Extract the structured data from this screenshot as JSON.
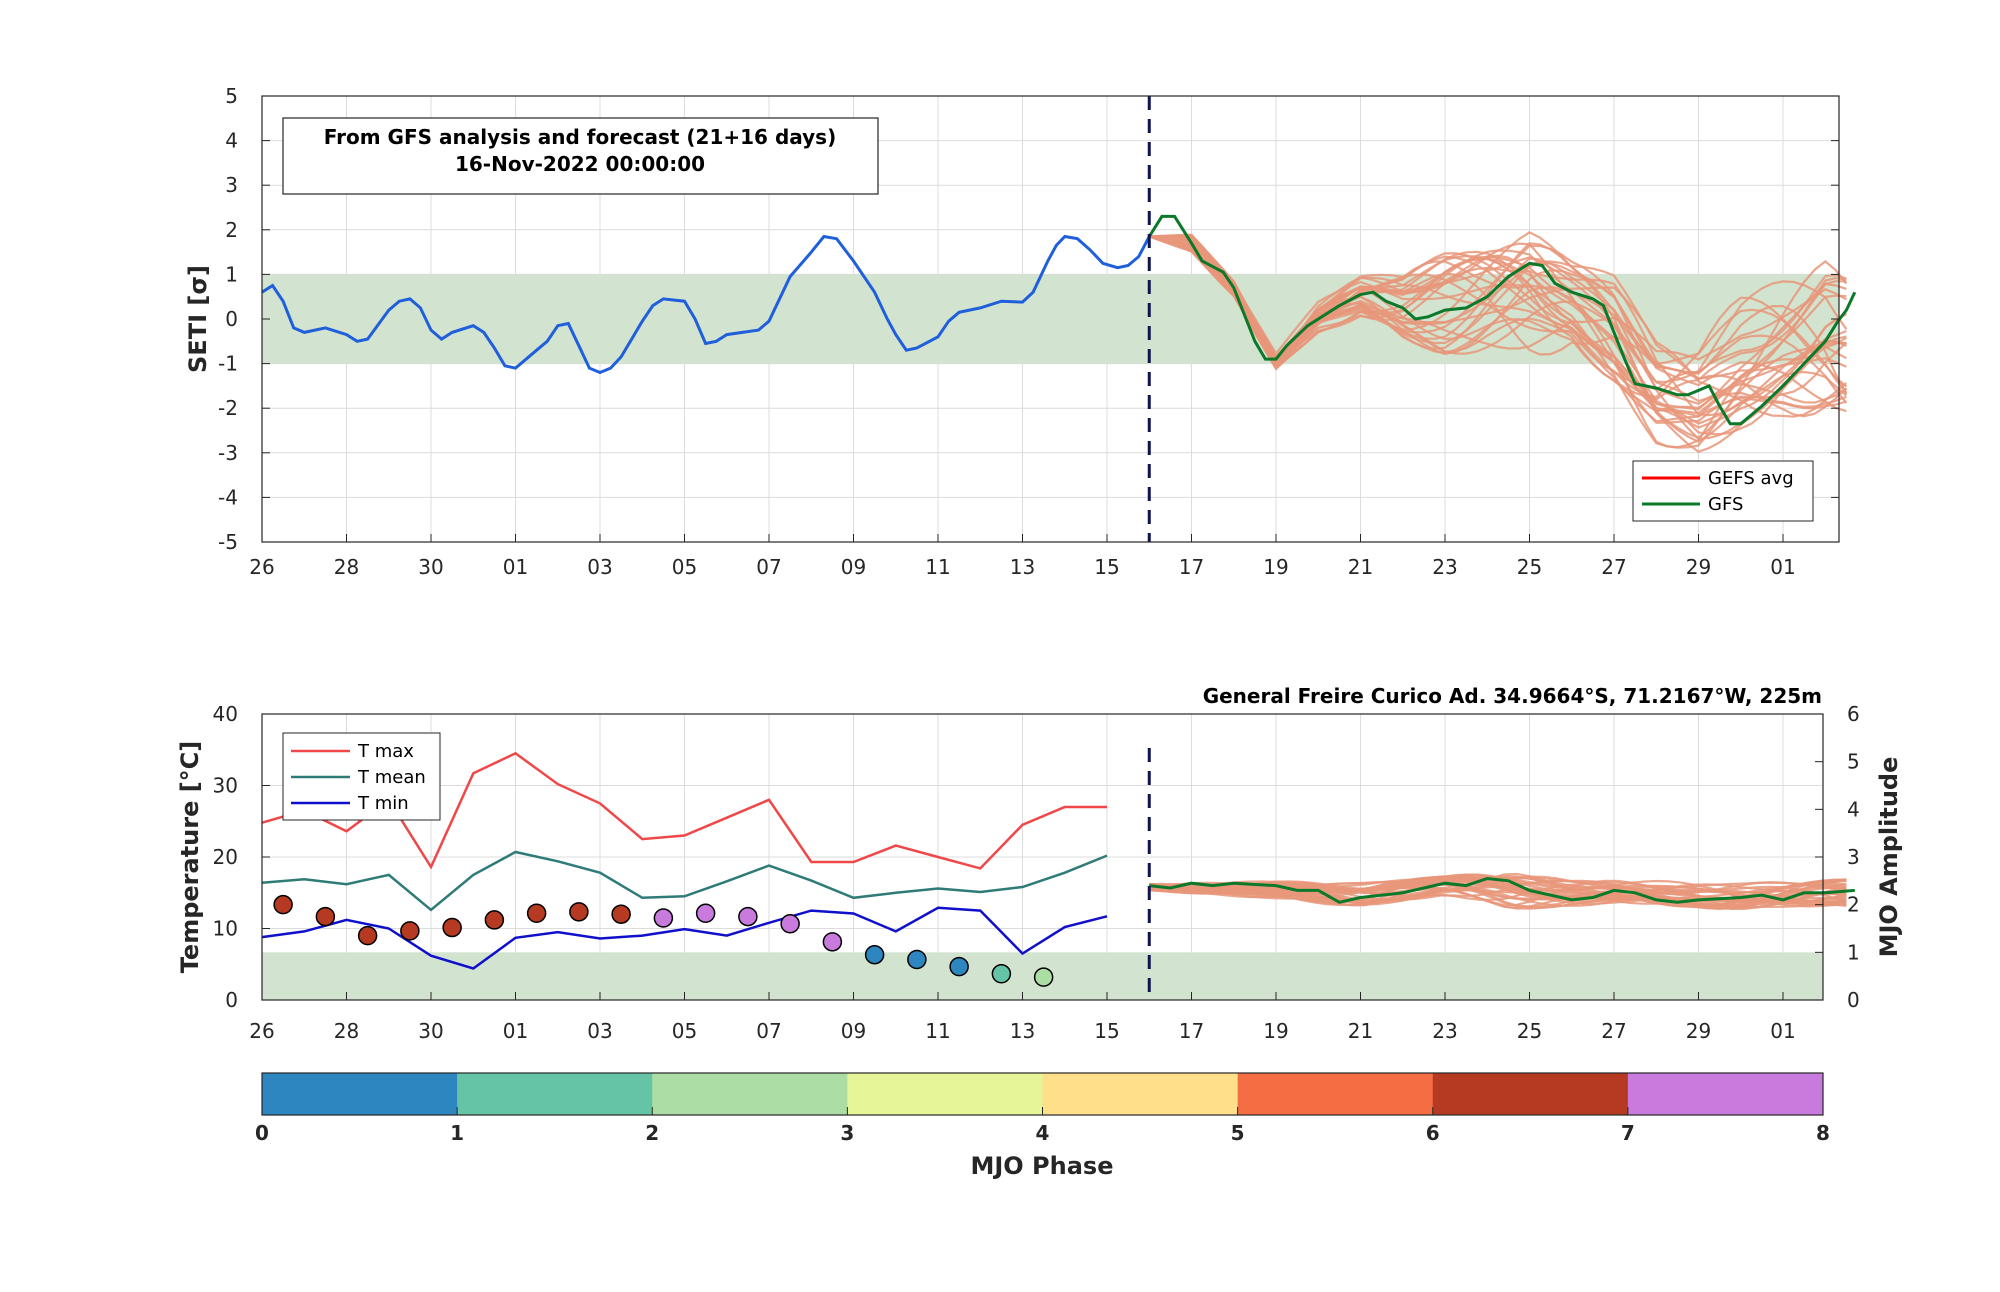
{
  "top": {
    "info_line1": "From GFS analysis and forecast (21+16 days)",
    "info_line2": "16-Nov-2022 00:00:00",
    "ylabel": "SETI [σ]",
    "yticks": [
      "5",
      "4",
      "3",
      "2",
      "1",
      "0",
      "-1",
      "-2",
      "-3",
      "-4",
      "-5"
    ],
    "xticks": [
      "26",
      "28",
      "30",
      "01",
      "03",
      "05",
      "07",
      "09",
      "11",
      "13",
      "15",
      "17",
      "19",
      "21",
      "23",
      "25",
      "27",
      "29",
      "01"
    ],
    "legend": [
      {
        "label": "GEFS avg",
        "color": "#ff0000"
      },
      {
        "label": "GFS",
        "color": "#0a7a2a"
      }
    ]
  },
  "bottom": {
    "station": "General Freire Curico Ad. 34.9664°S, 71.2167°W, 225m",
    "ylabel_left": "Temperature [°C]",
    "ylabel_right": "MJO Amplitude",
    "yticks_left": [
      "40",
      "30",
      "20",
      "10",
      "0"
    ],
    "yticks_right": [
      "6",
      "5",
      "4",
      "3",
      "2",
      "1",
      "0"
    ],
    "xticks": [
      "26",
      "28",
      "30",
      "01",
      "03",
      "05",
      "07",
      "09",
      "11",
      "13",
      "15",
      "17",
      "19",
      "21",
      "23",
      "25",
      "27",
      "29",
      "01"
    ],
    "legend": [
      {
        "label": "T max",
        "color": "#f04848"
      },
      {
        "label": "T mean",
        "color": "#2e7b78"
      },
      {
        "label": "T min",
        "color": "#1010cc"
      }
    ]
  },
  "colorbar": {
    "label": "MJO Phase",
    "ticks": [
      "0",
      "1",
      "2",
      "3",
      "4",
      "5",
      "6",
      "7",
      "8"
    ],
    "colors": [
      "#2e86c1",
      "#66c4a6",
      "#abdda4",
      "#e6f598",
      "#fee08b",
      "#f46d43",
      "#b63a22",
      "#c97bdd"
    ]
  },
  "chart_data": [
    {
      "type": "line",
      "title": "From GFS analysis and forecast (21+16 days) 16-Nov-2022 00:00:00",
      "xlabel": "",
      "ylabel": "SETI [σ]",
      "x_unit": "day index (0 = 26 Oct 2022)",
      "xlim": [
        0,
        37.3
      ],
      "ylim": [
        -5,
        5
      ],
      "grid": true,
      "legend_position": "bottom-right",
      "normal_band": [
        -1,
        1
      ],
      "forecast_start_x": 21,
      "series": [
        {
          "name": "analysis",
          "color": "#1f5fdc",
          "points": [
            [
              0,
              0.6
            ],
            [
              0.25,
              0.75
            ],
            [
              0.5,
              0.4
            ],
            [
              0.75,
              -0.2
            ],
            [
              1,
              -0.3
            ],
            [
              1.5,
              -0.2
            ],
            [
              2,
              -0.35
            ],
            [
              2.25,
              -0.5
            ],
            [
              2.5,
              -0.45
            ],
            [
              3,
              0.2
            ],
            [
              3.25,
              0.4
            ],
            [
              3.5,
              0.45
            ],
            [
              3.75,
              0.25
            ],
            [
              4,
              -0.25
            ],
            [
              4.25,
              -0.45
            ],
            [
              4.5,
              -0.3
            ],
            [
              5,
              -0.15
            ],
            [
              5.25,
              -0.3
            ],
            [
              5.5,
              -0.65
            ],
            [
              5.75,
              -1.05
            ],
            [
              6,
              -1.1
            ],
            [
              6.5,
              -0.7
            ],
            [
              6.75,
              -0.5
            ],
            [
              7,
              -0.15
            ],
            [
              7.25,
              -0.1
            ],
            [
              7.5,
              -0.6
            ],
            [
              7.75,
              -1.1
            ],
            [
              8,
              -1.2
            ],
            [
              8.25,
              -1.1
            ],
            [
              8.5,
              -0.85
            ],
            [
              9,
              -0.05
            ],
            [
              9.25,
              0.3
            ],
            [
              9.5,
              0.45
            ],
            [
              10,
              0.4
            ],
            [
              10.25,
              0
            ],
            [
              10.5,
              -0.55
            ],
            [
              10.75,
              -0.5
            ],
            [
              11,
              -0.35
            ],
            [
              11.75,
              -0.25
            ],
            [
              12,
              -0.05
            ],
            [
              12.5,
              0.95
            ],
            [
              13,
              1.5
            ],
            [
              13.3,
              1.85
            ],
            [
              13.6,
              1.8
            ],
            [
              14,
              1.3
            ],
            [
              14.5,
              0.6
            ],
            [
              14.8,
              0
            ],
            [
              15,
              -0.35
            ],
            [
              15.25,
              -0.7
            ],
            [
              15.5,
              -0.65
            ],
            [
              16,
              -0.4
            ],
            [
              16.25,
              -0.05
            ],
            [
              16.5,
              0.15
            ],
            [
              17,
              0.25
            ],
            [
              17.5,
              0.4
            ],
            [
              18,
              0.38
            ],
            [
              18.25,
              0.6
            ],
            [
              18.6,
              1.3
            ],
            [
              18.8,
              1.65
            ],
            [
              19,
              1.85
            ],
            [
              19.3,
              1.8
            ],
            [
              19.6,
              1.55
            ],
            [
              19.9,
              1.25
            ],
            [
              20.25,
              1.15
            ],
            [
              20.5,
              1.2
            ],
            [
              20.75,
              1.4
            ],
            [
              21,
              1.85
            ]
          ]
        },
        {
          "name": "GFS",
          "color": "#0a7a2a",
          "points": [
            [
              21,
              1.85
            ],
            [
              21.3,
              2.3
            ],
            [
              21.6,
              2.3
            ],
            [
              22,
              1.7
            ],
            [
              22.25,
              1.3
            ],
            [
              22.75,
              1.05
            ],
            [
              23,
              0.7
            ],
            [
              23.25,
              0.1
            ],
            [
              23.5,
              -0.5
            ],
            [
              23.75,
              -0.9
            ],
            [
              24,
              -0.9
            ],
            [
              24.25,
              -0.6
            ],
            [
              24.75,
              -0.15
            ],
            [
              25.5,
              0.3
            ],
            [
              26,
              0.55
            ],
            [
              26.3,
              0.6
            ],
            [
              26.6,
              0.4
            ],
            [
              27,
              0.25
            ],
            [
              27.3,
              0
            ],
            [
              27.6,
              0.05
            ],
            [
              28,
              0.2
            ],
            [
              28.5,
              0.25
            ],
            [
              29,
              0.5
            ],
            [
              29.5,
              0.95
            ],
            [
              30,
              1.25
            ],
            [
              30.3,
              1.2
            ],
            [
              30.6,
              0.8
            ],
            [
              31,
              0.6
            ],
            [
              31.5,
              0.45
            ],
            [
              31.75,
              0.3
            ],
            [
              32,
              -0.3
            ],
            [
              32.25,
              -0.9
            ],
            [
              32.5,
              -1.45
            ],
            [
              33,
              -1.55
            ],
            [
              33.5,
              -1.7
            ],
            [
              33.75,
              -1.7
            ],
            [
              34,
              -1.6
            ],
            [
              34.25,
              -1.5
            ],
            [
              34.5,
              -1.95
            ],
            [
              34.75,
              -2.35
            ],
            [
              35,
              -2.35
            ],
            [
              35.5,
              -1.95
            ],
            [
              36,
              -1.5
            ],
            [
              36.5,
              -1
            ],
            [
              37,
              -0.5
            ],
            [
              37.3,
              -0.05
            ],
            [
              37.5,
              0.2
            ],
            [
              37.7,
              0.6
            ]
          ]
        },
        {
          "name": "GEFS members",
          "color": "#e8967a",
          "members": 30,
          "envelope": [
            [
              21,
              1.85,
              1.85
            ],
            [
              22,
              1.5,
              1.9
            ],
            [
              23,
              0.5,
              0.9
            ],
            [
              24,
              -1.15,
              -0.75
            ],
            [
              25,
              -0.3,
              0.4
            ],
            [
              26,
              0,
              1
            ],
            [
              27,
              -0.5,
              1
            ],
            [
              28,
              -0.8,
              1.5
            ],
            [
              29,
              -0.8,
              1.8
            ],
            [
              30,
              -0.9,
              2
            ],
            [
              31,
              -0.7,
              1.3
            ],
            [
              32,
              -1.6,
              1
            ],
            [
              33,
              -2.8,
              -0.2
            ],
            [
              34,
              -3.1,
              -0.3
            ],
            [
              35,
              -2.5,
              0.5
            ],
            [
              36,
              -2.2,
              0.9
            ],
            [
              37,
              -2.2,
              1.3
            ],
            [
              37.7,
              -2.3,
              0.8
            ]
          ]
        }
      ]
    },
    {
      "type": "line",
      "title": "General Freire Curico Ad. 34.9664°S, 71.2167°W, 225m",
      "xlabel": "",
      "ylabel": "Temperature [°C]",
      "y2label": "MJO Amplitude",
      "x_unit": "day index (0 = 26 Oct 2022)",
      "xlim": [
        0,
        37.3
      ],
      "ylim": [
        0,
        40
      ],
      "y2lim": [
        0,
        6
      ],
      "grid": true,
      "legend_position": "top-left",
      "forecast_start_x": 21,
      "series": [
        {
          "name": "T max",
          "color": "#f04848",
          "x": [
            0,
            1,
            2,
            3,
            4,
            5,
            6,
            7,
            8,
            9,
            10,
            11,
            12,
            13,
            14,
            15,
            16,
            17,
            18,
            19,
            20
          ],
          "values": [
            24.8,
            26.5,
            23.6,
            28,
            18.6,
            31.7,
            34.5,
            30.2,
            27.5,
            22.5,
            23,
            25.5,
            28,
            19.3,
            19.3,
            21.6,
            20,
            18.4,
            24.5,
            27,
            27
          ]
        },
        {
          "name": "T mean",
          "color": "#2e7b78",
          "x": [
            0,
            1,
            2,
            3,
            4,
            5,
            6,
            7,
            8,
            9,
            10,
            11,
            12,
            13,
            14,
            15,
            16,
            17,
            18,
            19,
            20
          ],
          "values": [
            16.4,
            16.9,
            16.2,
            17.5,
            12.6,
            17.5,
            20.7,
            19.4,
            17.8,
            14.3,
            14.5,
            16.6,
            18.8,
            16.7,
            14.3,
            15,
            15.6,
            15.1,
            15.8,
            17.8,
            20.2
          ]
        },
        {
          "name": "T min",
          "color": "#1010cc",
          "x": [
            0,
            1,
            2,
            3,
            4,
            5,
            6,
            7,
            8,
            9,
            10,
            11,
            12,
            13,
            14,
            15,
            16,
            17,
            18,
            19,
            20
          ],
          "values": [
            8.8,
            9.6,
            11.2,
            10,
            6.2,
            4.4,
            8.7,
            9.5,
            8.6,
            9,
            9.9,
            9,
            10.8,
            12.5,
            12.1,
            9.6,
            12.9,
            12.5,
            6.5,
            10.2,
            11.7
          ]
        },
        {
          "name": "MJO",
          "axis": "y2",
          "x": [
            0.5,
            1.5,
            2.5,
            3.5,
            4.5,
            5.5,
            6.5,
            7.5,
            8.5,
            9.5,
            10.5,
            11.5,
            12.5,
            13.5,
            14.5,
            15.5,
            16.5,
            17.5,
            18.5
          ],
          "amplitude": [
            2.0,
            1.75,
            1.35,
            1.45,
            1.52,
            1.68,
            1.82,
            1.85,
            1.8,
            1.72,
            1.82,
            1.75,
            1.6,
            1.22,
            0.95,
            0.85,
            0.7,
            0.55,
            0.48
          ],
          "phase_color": [
            "#b63a22",
            "#b63a22",
            "#b63a22",
            "#b63a22",
            "#b63a22",
            "#b63a22",
            "#b63a22",
            "#b63a22",
            "#b63a22",
            "#c97bdd",
            "#c97bdd",
            "#c97bdd",
            "#c97bdd",
            "#c97bdd",
            "#2e86c1",
            "#2e86c1",
            "#2e86c1",
            "#66c4a6",
            "#abdda4"
          ]
        },
        {
          "name": "GFS",
          "axis": "y2",
          "color": "#0a7a2a",
          "points": [
            [
              21,
              2.4
            ],
            [
              21.5,
              2.35
            ],
            [
              22,
              2.45
            ],
            [
              22.5,
              2.4
            ],
            [
              23,
              2.45
            ],
            [
              24,
              2.4
            ],
            [
              24.5,
              2.3
            ],
            [
              25,
              2.3
            ],
            [
              25.5,
              2.05
            ],
            [
              26,
              2.15
            ],
            [
              27,
              2.25
            ],
            [
              27.5,
              2.35
            ],
            [
              28,
              2.45
            ],
            [
              28.5,
              2.4
            ],
            [
              29,
              2.55
            ],
            [
              29.5,
              2.5
            ],
            [
              30,
              2.3
            ],
            [
              31,
              2.1
            ],
            [
              31.5,
              2.15
            ],
            [
              32,
              2.3
            ],
            [
              32.5,
              2.25
            ],
            [
              33,
              2.1
            ],
            [
              33.5,
              2.05
            ],
            [
              34,
              2.1
            ],
            [
              35,
              2.15
            ],
            [
              35.5,
              2.2
            ],
            [
              36,
              2.1
            ],
            [
              36.5,
              2.25
            ],
            [
              37,
              2.25
            ],
            [
              37.7,
              2.3
            ]
          ]
        },
        {
          "name": "GEFS members",
          "axis": "y2",
          "color": "#e8967a",
          "members": 30,
          "envelope": [
            [
              21,
              2.3,
              2.45
            ],
            [
              24,
              2.1,
              2.5
            ],
            [
              26,
              1.95,
              2.45
            ],
            [
              28,
              2.2,
              2.6
            ],
            [
              29.5,
              1.9,
              2.7
            ],
            [
              31,
              1.95,
              2.55
            ],
            [
              33,
              1.95,
              2.5
            ],
            [
              35,
              1.9,
              2.45
            ],
            [
              37.7,
              1.95,
              2.55
            ]
          ]
        }
      ],
      "normal_band_y2": [
        0,
        1
      ]
    },
    {
      "type": "colorbar",
      "title": "MJO Phase",
      "ticks": [
        0,
        1,
        2,
        3,
        4,
        5,
        6,
        7,
        8
      ]
    }
  ]
}
